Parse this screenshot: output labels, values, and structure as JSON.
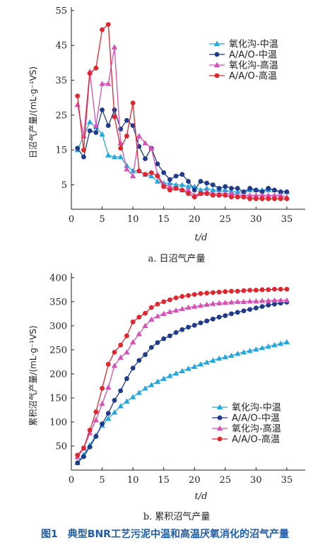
{
  "figure_caption": "图1　典型BNR工艺污泥中温和高温厌氧消化的沼气产量",
  "colors": {
    "oxidation_mid": "#22a7e0",
    "aao_mid": "#203a8c",
    "oxidation_high": "#d84fb6",
    "aao_high": "#e0262e"
  },
  "chart_data": [
    {
      "type": "line",
      "title": "",
      "subtitle": "a. 日沼气产量",
      "xlabel": "t/d",
      "ylabel": "日沼气产量/(mL·g⁻¹VS)",
      "xlim": [
        0,
        38
      ],
      "ylim": [
        -2,
        56
      ],
      "xticks": [
        0,
        5,
        10,
        15,
        20,
        25,
        30,
        35
      ],
      "yticks": [
        5,
        15,
        25,
        35,
        45,
        55
      ],
      "grid": false,
      "legend": "top-right",
      "x": [
        1,
        2,
        3,
        4,
        5,
        6,
        7,
        8,
        9,
        10,
        11,
        12,
        13,
        14,
        15,
        16,
        17,
        18,
        19,
        20,
        21,
        22,
        23,
        24,
        25,
        26,
        27,
        28,
        29,
        30,
        31,
        32,
        33,
        34,
        35
      ],
      "series": [
        {
          "name": "氧化沟-中温",
          "marker": "triangle",
          "color": "#22a7e0",
          "values": [
            15,
            19,
            23,
            21.5,
            19.5,
            13.5,
            13,
            13,
            10.5,
            9,
            9,
            8,
            7.5,
            6,
            5.5,
            5.5,
            5,
            5,
            4.5,
            4.5,
            3.5,
            4,
            3.5,
            3.5,
            3.5,
            3,
            3,
            3,
            3.5,
            3.5,
            3.5,
            3.5,
            3.5,
            3,
            3
          ]
        },
        {
          "name": "A/A/O-中温",
          "marker": "circle",
          "color": "#203a8c",
          "values": [
            15.5,
            13,
            20.5,
            20,
            26.5,
            22,
            26.5,
            21,
            23.5,
            22,
            16,
            12.5,
            15.5,
            11,
            8.5,
            6.5,
            7.5,
            8,
            6,
            3.5,
            6,
            5.5,
            5,
            4,
            4.5,
            4,
            4,
            3,
            4,
            3.5,
            3,
            4,
            3.5,
            3,
            3
          ]
        },
        {
          "name": "氧化沟-高温",
          "marker": "triangle",
          "color": "#d84fb6",
          "values": [
            28,
            19,
            37.5,
            22,
            34,
            34,
            44.5,
            17,
            9.5,
            7.5,
            19,
            17,
            15.5,
            8,
            5,
            4.5,
            4,
            3.5,
            3.5,
            2,
            2.5,
            3,
            2.5,
            2.5,
            2.5,
            2.5,
            2,
            2,
            2,
            2,
            2,
            2,
            2,
            2,
            1.5
          ]
        },
        {
          "name": "A/A/O-高温",
          "marker": "circle",
          "color": "#e0262e",
          "values": [
            30.5,
            15,
            37,
            38.5,
            49.5,
            51,
            24.5,
            15.5,
            19,
            28.5,
            9,
            8,
            8.5,
            7.5,
            4.5,
            3.5,
            4,
            3.5,
            2.5,
            1.5,
            2.5,
            2.5,
            2,
            2,
            2,
            1.5,
            1.5,
            1.5,
            1,
            1,
            1,
            1,
            1,
            1,
            1
          ]
        }
      ]
    },
    {
      "type": "line",
      "title": "",
      "subtitle": "b. 累积沼气产量",
      "xlabel": "t/d",
      "ylabel": "累积沼气产量/(mL·g⁻¹VS)",
      "xlim": [
        0,
        38
      ],
      "ylim": [
        0,
        410
      ],
      "xticks": [
        0,
        5,
        10,
        15,
        20,
        25,
        30,
        35
      ],
      "yticks": [
        50,
        100,
        150,
        200,
        250,
        300,
        350,
        400
      ],
      "grid": false,
      "legend": "bottom-right",
      "x": [
        1,
        2,
        3,
        4,
        5,
        6,
        7,
        8,
        9,
        10,
        11,
        12,
        13,
        14,
        15,
        16,
        17,
        18,
        19,
        20,
        21,
        22,
        23,
        24,
        25,
        26,
        27,
        28,
        29,
        30,
        31,
        32,
        33,
        34,
        35
      ],
      "series": [
        {
          "name": "氧化沟-中温",
          "marker": "triangle",
          "color": "#22a7e0",
          "values": [
            15,
            32,
            52,
            72,
            93,
            107,
            120,
            133,
            143,
            152,
            161,
            170,
            177,
            184,
            190,
            196,
            201,
            206,
            211,
            215,
            220,
            224,
            228,
            232,
            235,
            238,
            242,
            245,
            248,
            251,
            254,
            257,
            260,
            263,
            266
          ]
        },
        {
          "name": "A/A/O-中温",
          "marker": "circle",
          "color": "#203a8c",
          "values": [
            15,
            28,
            48,
            70,
            96,
            118,
            145,
            165,
            190,
            212,
            228,
            240,
            255,
            265,
            273,
            279,
            286,
            292,
            297,
            301,
            306,
            310,
            314,
            318,
            321,
            325,
            328,
            331,
            334,
            337,
            340,
            343,
            345,
            347,
            349
          ]
        },
        {
          "name": "氧化沟-高温",
          "marker": "triangle",
          "color": "#d84fb6",
          "values": [
            27,
            45,
            77,
            104,
            138,
            172,
            217,
            234,
            245,
            266,
            283,
            300,
            313,
            320,
            325,
            329,
            332,
            335,
            338,
            340,
            342,
            344,
            346,
            347,
            348,
            349,
            350,
            350,
            351,
            351,
            352,
            352,
            353,
            353,
            353
          ]
        },
        {
          "name": "A/A/O-高温",
          "marker": "circle",
          "color": "#e0262e",
          "values": [
            31,
            46,
            83,
            121,
            170,
            220,
            245,
            260,
            279,
            308,
            318,
            326,
            338,
            345,
            350,
            354,
            358,
            361,
            363,
            365,
            367,
            368,
            369,
            370,
            371,
            372,
            372,
            373,
            374,
            374,
            375,
            375,
            376,
            376,
            376
          ]
        }
      ]
    }
  ]
}
